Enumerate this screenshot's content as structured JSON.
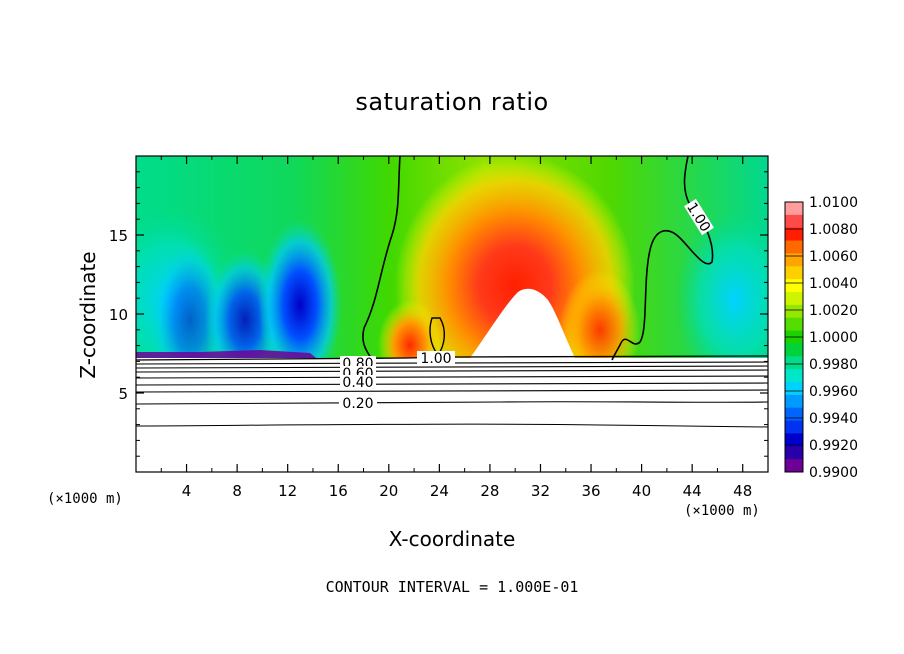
{
  "chart_data": {
    "type": "heatmap",
    "title": "saturation ratio",
    "xlabel": "X-coordinate",
    "ylabel": "Z-coordinate",
    "x_unit_label_left": "(×1000 m)",
    "x_unit_label_right": "(×1000 m)",
    "footer": "CONTOUR INTERVAL = 1.000E-01",
    "xlim": [
      0,
      50
    ],
    "ylim": [
      0,
      20
    ],
    "x_ticks": [
      "4",
      "8",
      "12",
      "16",
      "20",
      "24",
      "28",
      "32",
      "36",
      "40",
      "44",
      "48"
    ],
    "x_tick_values": [
      4,
      8,
      12,
      16,
      20,
      24,
      28,
      32,
      36,
      40,
      44,
      48
    ],
    "y_ticks": [
      "5",
      "10",
      "15"
    ],
    "y_tick_values": [
      5,
      10,
      15
    ],
    "colorbar": {
      "labels": [
        "1.0100",
        "1.0080",
        "1.0060",
        "1.0040",
        "1.0020",
        "1.0000",
        "0.9980",
        "0.9960",
        "0.9940",
        "0.9920",
        "0.9900"
      ],
      "values": [
        1.01,
        1.008,
        1.006,
        1.004,
        1.002,
        1.0,
        0.998,
        0.996,
        0.994,
        0.992,
        0.99
      ],
      "colors": [
        "#ff9d9d",
        "#ff4a4a",
        "#ff1e00",
        "#ff6a00",
        "#ffa500",
        "#ffd000",
        "#ffff00",
        "#cdf400",
        "#96e600",
        "#55dd00",
        "#1cd200",
        "#00d23c",
        "#00dc8c",
        "#00e6c8",
        "#00d2ff",
        "#009bff",
        "#0064ff",
        "#0032f0",
        "#0000cd",
        "#2800aa",
        "#6e0096"
      ]
    },
    "field_features": [
      {
        "kind": "peak",
        "x": 30,
        "z": 12.5,
        "value": 1.01
      },
      {
        "kind": "peak",
        "x": 21,
        "z": 8.2,
        "value": 1.007
      },
      {
        "kind": "peak",
        "x": 36,
        "z": 8.0,
        "value": 1.006
      },
      {
        "kind": "trough",
        "x": 4,
        "z": 9.0,
        "value": 0.996
      },
      {
        "kind": "trough",
        "x": 8.5,
        "z": 8.5,
        "value": 0.992
      },
      {
        "kind": "trough",
        "x": 13,
        "z": 9.5,
        "value": 0.991
      }
    ],
    "cloud_base_z": 7.4,
    "contours": [
      {
        "label": "1.00",
        "level": 1.0
      },
      {
        "label": "0.80",
        "level": 0.8
      },
      {
        "label": "0.60",
        "level": 0.6
      },
      {
        "label": "0.40",
        "level": 0.4
      },
      {
        "label": "0.20",
        "level": 0.2
      }
    ],
    "grid": false,
    "legend": "colorbar right"
  }
}
